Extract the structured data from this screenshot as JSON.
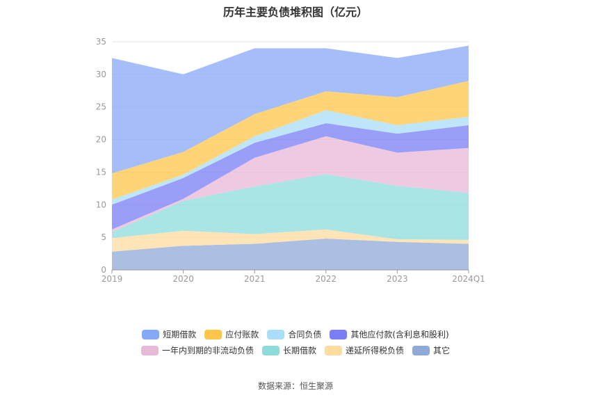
{
  "title": "历年主要负债堆积图（亿元）",
  "source": "数据来源：恒生聚源",
  "chart_data": {
    "type": "area",
    "stacked": true,
    "title": "历年主要负债堆积图（亿元）",
    "categories": [
      "2019",
      "2020",
      "2021",
      "2022",
      "2023",
      "2024Q1"
    ],
    "ylim": [
      0,
      35
    ],
    "yticks": [
      0,
      5,
      10,
      15,
      20,
      25,
      30,
      35
    ],
    "grid": true,
    "legend_position": "bottom",
    "series": [
      {
        "name": "其它",
        "color": "#8fa9d8",
        "values": [
          2.8,
          3.7,
          4.0,
          4.8,
          4.3,
          4.0
        ]
      },
      {
        "name": "递延所得税负债",
        "color": "#fddca0",
        "values": [
          2.1,
          2.3,
          1.5,
          1.4,
          0.4,
          0.6
        ]
      },
      {
        "name": "长期借款",
        "color": "#8ddcdc",
        "values": [
          0.9,
          4.6,
          7.3,
          8.5,
          8.2,
          7.2
        ]
      },
      {
        "name": "一年内到期的非流动负债",
        "color": "#e8b8d8",
        "values": [
          0.4,
          0.3,
          4.4,
          5.8,
          5.1,
          6.9
        ]
      },
      {
        "name": "其他应付款(含利息和股利)",
        "color": "#7a7df5",
        "values": [
          3.8,
          3.2,
          2.3,
          2.0,
          2.9,
          3.5
        ]
      },
      {
        "name": "合同负债",
        "color": "#a9def6",
        "values": [
          0.8,
          0.5,
          1.0,
          2.0,
          1.3,
          1.3
        ]
      },
      {
        "name": "应付账款",
        "color": "#fdc54a",
        "values": [
          4.0,
          3.5,
          3.4,
          2.9,
          4.3,
          5.5
        ]
      },
      {
        "name": "短期借款",
        "color": "#87a8f8",
        "values": [
          17.7,
          11.9,
          10.1,
          6.6,
          6.0,
          5.4
        ]
      }
    ]
  },
  "legend": {
    "row1": [
      {
        "label": "短期借款",
        "color": "#87a8f8"
      },
      {
        "label": "应付账款",
        "color": "#fdc54a"
      },
      {
        "label": "合同负债",
        "color": "#a9def6"
      },
      {
        "label": "其他应付款(含利息和股利)",
        "color": "#7a7df5"
      }
    ],
    "row2": [
      {
        "label": "一年内到期的非流动负债",
        "color": "#e8b8d8"
      },
      {
        "label": "长期借款",
        "color": "#8ddcdc"
      },
      {
        "label": "递延所得税负债",
        "color": "#fddca0"
      },
      {
        "label": "其它",
        "color": "#8fa9d8"
      }
    ]
  }
}
